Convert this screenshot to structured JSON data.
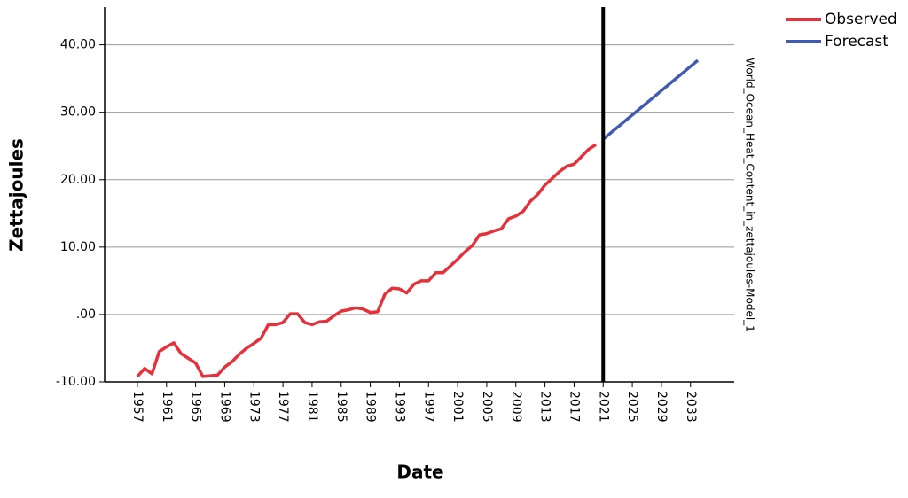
{
  "chart_data": {
    "type": "line",
    "x_label": "Date",
    "y_label": "Zettajoules",
    "right_label": "World_Ocean_Heat_Content_in_zettajoules-Model_1",
    "series": [
      {
        "name": "Observed",
        "color": "#e8303a",
        "x": [
          1957,
          1958,
          1959,
          1960,
          1961,
          1962,
          1963,
          1964,
          1965,
          1966,
          1967,
          1968,
          1969,
          1970,
          1971,
          1972,
          1973,
          1974,
          1975,
          1976,
          1977,
          1978,
          1979,
          1980,
          1981,
          1982,
          1983,
          1984,
          1985,
          1986,
          1987,
          1988,
          1989,
          1990,
          1991,
          1992,
          1993,
          1994,
          1995,
          1996,
          1997,
          1998,
          1999,
          2000,
          2001,
          2002,
          2003,
          2004,
          2005,
          2006,
          2007,
          2008,
          2009,
          2010,
          2011,
          2012,
          2013,
          2014,
          2015,
          2016,
          2017,
          2018,
          2019,
          2020
        ],
        "values": [
          -9.2,
          -8.0,
          -8.8,
          -5.5,
          -4.8,
          -4.2,
          -5.8,
          -6.5,
          -7.2,
          -9.2,
          -9.1,
          -9.0,
          -7.8,
          -7.0,
          -5.9,
          -5.0,
          -4.3,
          -3.5,
          -1.5,
          -1.5,
          -1.2,
          0.1,
          0.1,
          -1.2,
          -1.5,
          -1.1,
          -1.0,
          -0.2,
          0.5,
          0.7,
          1.0,
          0.8,
          0.3,
          0.4,
          3.0,
          3.9,
          3.8,
          3.2,
          4.5,
          5.0,
          5.0,
          6.2,
          6.2,
          7.2,
          8.2,
          9.3,
          10.2,
          11.8,
          12.0,
          12.4,
          12.7,
          14.2,
          14.6,
          15.3,
          16.8,
          17.8,
          19.2,
          20.2,
          21.2,
          22.0,
          22.3,
          23.4,
          24.5,
          25.2
        ]
      },
      {
        "name": "Forecast",
        "color": "#3f5bb8",
        "x": [
          2021,
          2022,
          2023,
          2024,
          2025,
          2026,
          2027,
          2028,
          2029,
          2030,
          2031,
          2032,
          2033,
          2034
        ],
        "values": [
          26.0,
          26.9,
          27.8,
          28.7,
          29.6,
          30.5,
          31.4,
          32.3,
          33.2,
          34.1,
          35.0,
          35.9,
          36.8,
          37.7
        ]
      }
    ],
    "reference_line": 2021,
    "xlim": [
      1952.5,
      2039
    ],
    "xticks": [
      1957,
      1961,
      1965,
      1969,
      1973,
      1977,
      1981,
      1985,
      1989,
      1993,
      1997,
      2001,
      2005,
      2009,
      2013,
      2017,
      2021,
      2025,
      2029,
      2033
    ],
    "ylim": [
      -10,
      45.6
    ],
    "yticks": [
      {
        "value": -10,
        "label": "-10.00"
      },
      {
        "value": 0,
        "label": ".00"
      },
      {
        "value": 10,
        "label": "10.00"
      },
      {
        "value": 20,
        "label": "20.00"
      },
      {
        "value": 30,
        "label": "30.00"
      },
      {
        "value": 40,
        "label": "40.00"
      }
    ],
    "grid": true,
    "legend": "top-right"
  }
}
